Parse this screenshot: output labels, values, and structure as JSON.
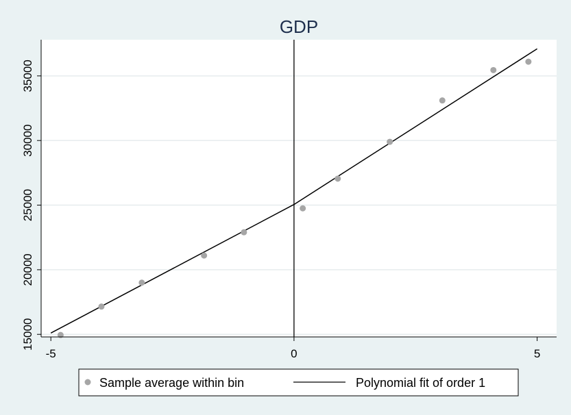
{
  "chart_data": {
    "type": "scatter",
    "title": "GDP",
    "xlabel": "",
    "ylabel": "",
    "xlim": [
      -5.2,
      5.4
    ],
    "ylim": [
      14800,
      37800
    ],
    "xticks": [
      -5,
      0,
      5
    ],
    "yticks": [
      15000,
      20000,
      25000,
      30000,
      35000
    ],
    "cutoff": 0,
    "grid": true,
    "legend_position": "bottom",
    "series": [
      {
        "name": "Sample average within bin",
        "kind": "scatter",
        "color": "#a6a6a6",
        "points": [
          {
            "x": -4.8,
            "y": 14950
          },
          {
            "x": -3.96,
            "y": 17150
          },
          {
            "x": -3.13,
            "y": 19000
          },
          {
            "x": -1.85,
            "y": 21100
          },
          {
            "x": -1.03,
            "y": 22900
          },
          {
            "x": 0.18,
            "y": 24750
          },
          {
            "x": 0.9,
            "y": 27050
          },
          {
            "x": 1.97,
            "y": 29900
          },
          {
            "x": 3.05,
            "y": 33100
          },
          {
            "x": 4.1,
            "y": 35450
          },
          {
            "x": 4.82,
            "y": 36100
          }
        ]
      },
      {
        "name": "Polynomial fit of order 1",
        "kind": "line",
        "color": "#000000",
        "segments": [
          [
            {
              "x": -5.0,
              "y": 15100
            },
            {
              "x": 0,
              "y": 25050
            }
          ],
          [
            {
              "x": 0,
              "y": 25050
            },
            {
              "x": 5.0,
              "y": 37100
            }
          ]
        ]
      }
    ]
  }
}
